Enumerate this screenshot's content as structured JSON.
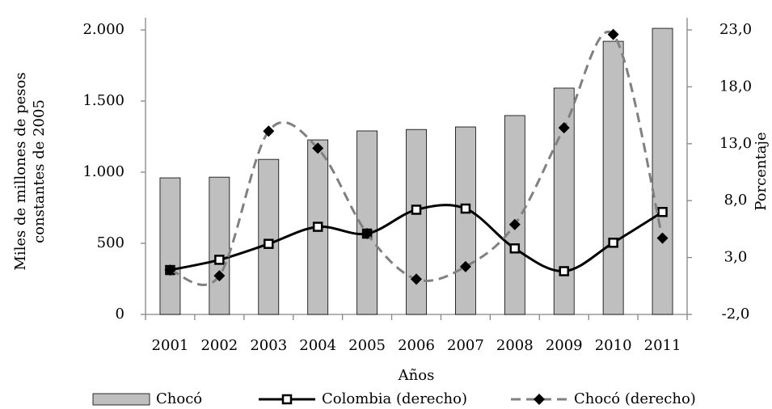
{
  "chart_data": {
    "type": "combo",
    "xlabel": "Años",
    "ylabel": "Miles de millones de pesos constantes de 2005",
    "y2label": "Porcentaje",
    "categories": [
      "2001",
      "2002",
      "2003",
      "2004",
      "2005",
      "2006",
      "2007",
      "2008",
      "2009",
      "2010",
      "2011"
    ],
    "ylim": [
      0,
      2000
    ],
    "yticks": [
      0,
      500,
      {
        "value": 1000,
        "label": "1.000"
      },
      {
        "value": 1500,
        "label": "1.500"
      },
      {
        "value": 2000,
        "label": "2.000"
      }
    ],
    "y2lim": [
      -2,
      23
    ],
    "y2ticks": [
      {
        "value": -2,
        "label": "-2,0"
      },
      {
        "value": 3,
        "label": "3,0"
      },
      {
        "value": 8,
        "label": "8,0"
      },
      {
        "value": 13,
        "label": "13,0"
      },
      {
        "value": 18,
        "label": "18,0"
      },
      {
        "value": 23,
        "label": "23,0"
      }
    ],
    "series": [
      {
        "name": "Chocó",
        "type": "bar",
        "color": "#bfbfbf",
        "values": [
          960,
          965,
          1090,
          1227,
          1290,
          1300,
          1318,
          1398,
          1591,
          1920,
          2011
        ]
      },
      {
        "name": "Colombia (derecho)",
        "type": "line",
        "axis": "y2",
        "color": "#000000",
        "linestyle": "solid",
        "marker": "square",
        "values": [
          1.9,
          2.8,
          4.2,
          5.7,
          5.1,
          7.2,
          7.3,
          3.8,
          1.8,
          4.3,
          7.0
        ]
      },
      {
        "name": "Chocó (derecho)",
        "type": "line",
        "axis": "y2",
        "color": "#808080",
        "linestyle": "dashed",
        "marker": "diamond",
        "values": [
          1.9,
          1.4,
          14.1,
          12.6,
          5.1,
          1.1,
          2.2,
          5.9,
          14.4,
          22.6,
          4.7
        ]
      }
    ]
  }
}
